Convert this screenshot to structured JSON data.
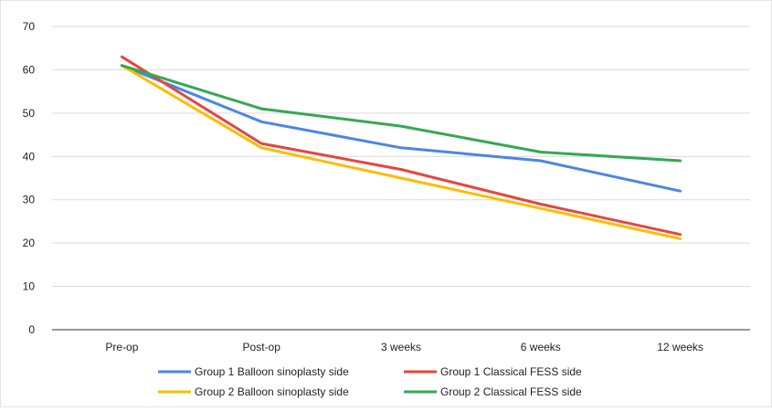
{
  "chart_data": {
    "type": "line",
    "categories": [
      "Pre-op",
      "Post-op",
      "3 weeks",
      "6 weeks",
      "12 weeks"
    ],
    "ylim": [
      0,
      70
    ],
    "yticks": [
      0,
      10,
      20,
      30,
      40,
      50,
      60,
      70
    ],
    "grid": true,
    "legend_position": "bottom",
    "series": [
      {
        "name": "Group 1 Balloon sinoplasty side",
        "color": "#4a86e8",
        "values": [
          61,
          48,
          42,
          39,
          32
        ]
      },
      {
        "name": "Group 1 Classical FESS side",
        "color": "#e8453c",
        "values": [
          63,
          43,
          37,
          29,
          22
        ]
      },
      {
        "name": "Group 2 Balloon sinoplasty side",
        "color": "#fbbc04",
        "values": [
          61,
          42,
          35,
          28,
          21
        ]
      },
      {
        "name": "Group 2 Classical FESS side",
        "color": "#34a853",
        "values": [
          61,
          51,
          47,
          41,
          39
        ]
      }
    ]
  }
}
